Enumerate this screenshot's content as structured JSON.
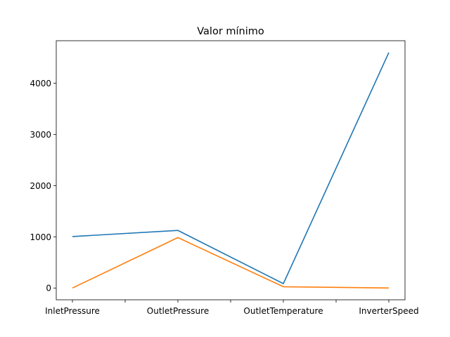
{
  "chart_data": {
    "type": "line",
    "title": "Valor mínimo",
    "xlabel": "",
    "ylabel": "",
    "categories": [
      "InletPressure",
      "OutletPressure",
      "OutletTemperature",
      "InverterSpeed"
    ],
    "series": [
      {
        "values": [
          1005,
          1125,
          85,
          4600
        ],
        "color": "#1f77b4"
      },
      {
        "values": [
          0,
          985,
          25,
          0
        ],
        "color": "#ff7f0e"
      }
    ],
    "ylim": [
      -230,
      4830
    ],
    "yticks": [
      0,
      1000,
      2000,
      3000,
      4000
    ],
    "ytick_labels": [
      "0",
      "1000",
      "2000",
      "3000",
      "4000"
    ],
    "grid": false,
    "legend": "none"
  }
}
